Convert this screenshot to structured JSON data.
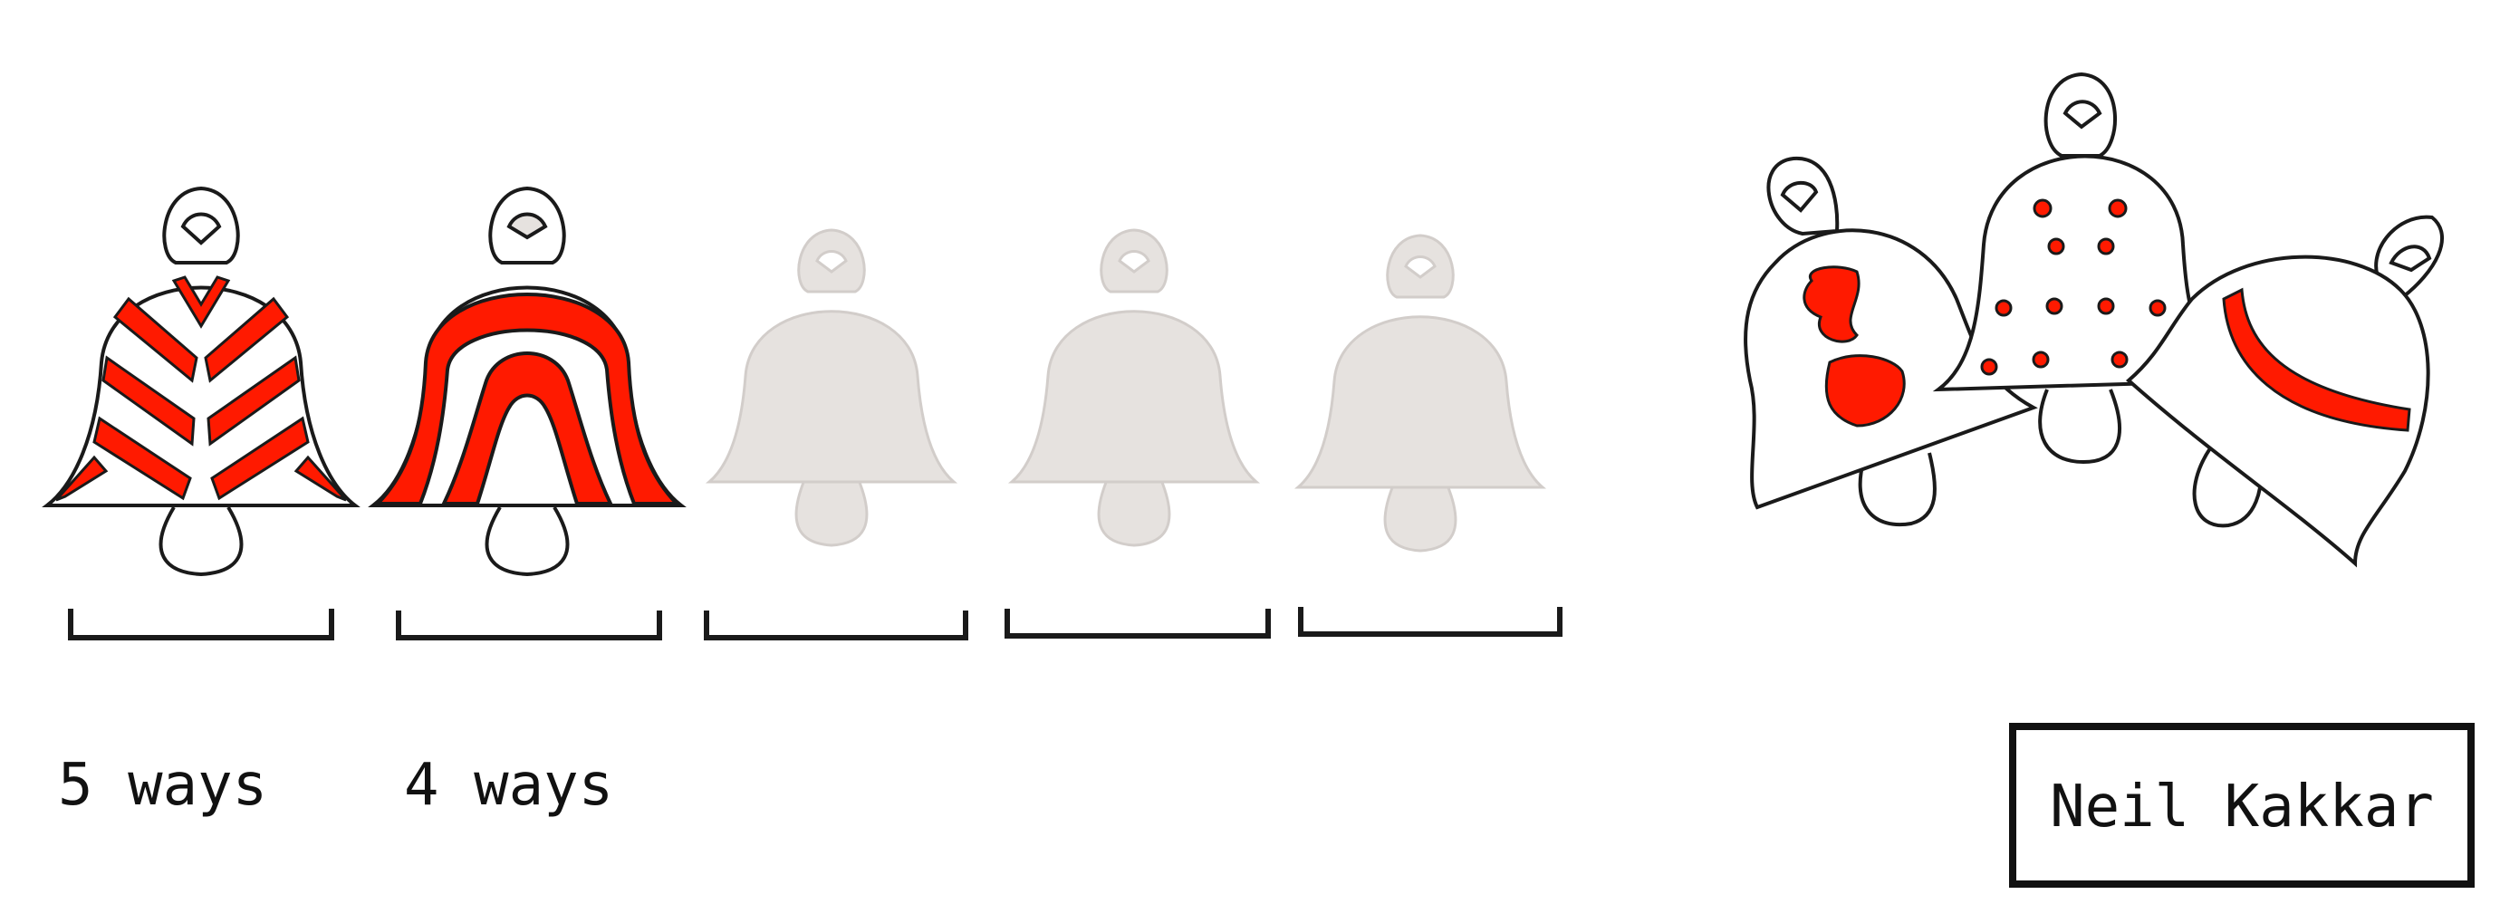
{
  "labels": {
    "slot1": "5 ways",
    "slot2": "4 ways"
  },
  "signature": "Neil Kakkar",
  "colors": {
    "stroke": "#1a1a1a",
    "accent": "#ff1a00",
    "faded_fill": "#e6e2df",
    "faded_stroke": "#d2cdca",
    "background": "#ffffff"
  },
  "bells": [
    {
      "state": "filled",
      "pattern": "chevron-stripes"
    },
    {
      "state": "filled",
      "pattern": "arch-stripes"
    },
    {
      "state": "empty",
      "pattern": "none"
    },
    {
      "state": "empty",
      "pattern": "none"
    },
    {
      "state": "empty",
      "pattern": "none"
    }
  ],
  "cluster_patterns": [
    "red-blobs",
    "red-dots",
    "red-band"
  ]
}
